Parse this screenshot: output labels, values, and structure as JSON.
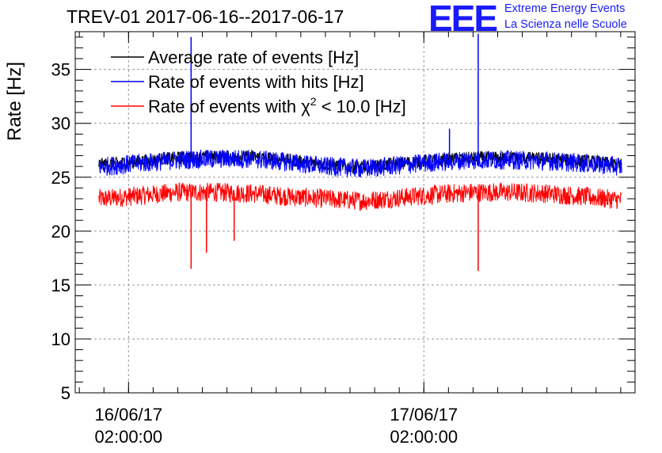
{
  "header": {
    "title": "TREV-01 2017-06-16--2017-06-17",
    "logo": "EEE",
    "org_line1": "Extreme Energy Events",
    "org_line2": "La Scienza nelle Scuole"
  },
  "colors": {
    "average": "#000000",
    "hits": "#0000ff",
    "chi2": "#ff0000",
    "grid": "#9a9a9a",
    "brand": "#1a1aff"
  },
  "chart_data": {
    "type": "line",
    "title": "TREV-01 2017-06-16--2017-06-17",
    "xlabel": "",
    "ylabel": "Rate [Hz]",
    "ylim": [
      5,
      38.5
    ],
    "yticks": [
      5,
      10,
      15,
      20,
      25,
      30,
      35
    ],
    "x_range": [
      "2017-06-15 21:40",
      "2017-06-17 19:10"
    ],
    "x_tick_labels": [
      {
        "x": "2017-06-16 02:00:00",
        "date": "16/06/17",
        "time": "02:00:00"
      },
      {
        "x": "2017-06-17 02:00:00",
        "date": "17/06/17",
        "time": "02:00:00"
      }
    ],
    "grid": true,
    "legend_position": "top-left",
    "legend": [
      {
        "text": "Average rate of events [Hz]",
        "color": "#000000"
      },
      {
        "text": "Rate of events with hits [Hz]",
        "color": "#0000ff"
      },
      {
        "text_prefix": "Rate of events with ",
        "symbol": "χ",
        "sup": "2",
        "text_suffix": " < 10.0 [Hz]",
        "color": "#ff0000"
      }
    ],
    "series": [
      {
        "name": "Average rate of events [Hz]",
        "x": [
          "2017-06-16 00:00",
          "2017-06-16 03:00",
          "2017-06-16 06:00",
          "2017-06-16 09:00",
          "2017-06-16 12:00",
          "2017-06-16 15:00",
          "2017-06-16 18:00",
          "2017-06-16 21:00",
          "2017-06-17 00:00",
          "2017-06-17 03:00",
          "2017-06-17 06:00",
          "2017-06-17 09:00",
          "2017-06-17 12:00",
          "2017-06-17 15:00",
          "2017-06-17 18:00"
        ],
        "values": [
          26.2,
          26.5,
          26.8,
          26.9,
          26.9,
          26.6,
          26.2,
          25.9,
          26.3,
          26.6,
          26.8,
          26.8,
          26.7,
          26.5,
          26.2
        ]
      },
      {
        "name": "Rate of events with hits [Hz]",
        "x": [
          "2017-06-16 00:00",
          "2017-06-16 03:00",
          "2017-06-16 06:00",
          "2017-06-16 09:00",
          "2017-06-16 12:00",
          "2017-06-16 15:00",
          "2017-06-16 18:00",
          "2017-06-16 21:00",
          "2017-06-17 00:00",
          "2017-06-17 03:00",
          "2017-06-17 06:00",
          "2017-06-17 09:00",
          "2017-06-17 12:00",
          "2017-06-17 15:00",
          "2017-06-17 18:00"
        ],
        "values": [
          26.0,
          26.3,
          26.6,
          26.7,
          26.7,
          26.4,
          26.0,
          25.8,
          26.1,
          26.4,
          26.6,
          26.6,
          26.5,
          26.3,
          26.0
        ],
        "spikes": [
          {
            "x": "2017-06-16 07:05",
            "value": 38.0
          },
          {
            "x": "2017-06-17 06:25",
            "value": 38.3
          },
          {
            "x": "2017-06-17 04:05",
            "value": 29.5
          }
        ]
      },
      {
        "name": "Rate of events with χ2 < 10.0 [Hz]",
        "x": [
          "2017-06-16 00:00",
          "2017-06-16 03:00",
          "2017-06-16 06:00",
          "2017-06-16 09:00",
          "2017-06-16 12:00",
          "2017-06-16 15:00",
          "2017-06-16 18:00",
          "2017-06-16 21:00",
          "2017-06-17 00:00",
          "2017-06-17 03:00",
          "2017-06-17 06:00",
          "2017-06-17 09:00",
          "2017-06-17 12:00",
          "2017-06-17 15:00",
          "2017-06-17 18:00"
        ],
        "values": [
          23.0,
          23.3,
          23.6,
          23.6,
          23.5,
          23.2,
          23.0,
          22.8,
          23.1,
          23.4,
          23.6,
          23.6,
          23.5,
          23.2,
          22.9
        ],
        "dips": [
          {
            "x": "2017-06-16 07:05",
            "value": 16.5
          },
          {
            "x": "2017-06-17 06:25",
            "value": 16.3
          },
          {
            "x": "2017-06-16 08:20",
            "value": 18.0
          },
          {
            "x": "2017-06-16 10:35",
            "value": 19.1
          }
        ]
      }
    ]
  }
}
